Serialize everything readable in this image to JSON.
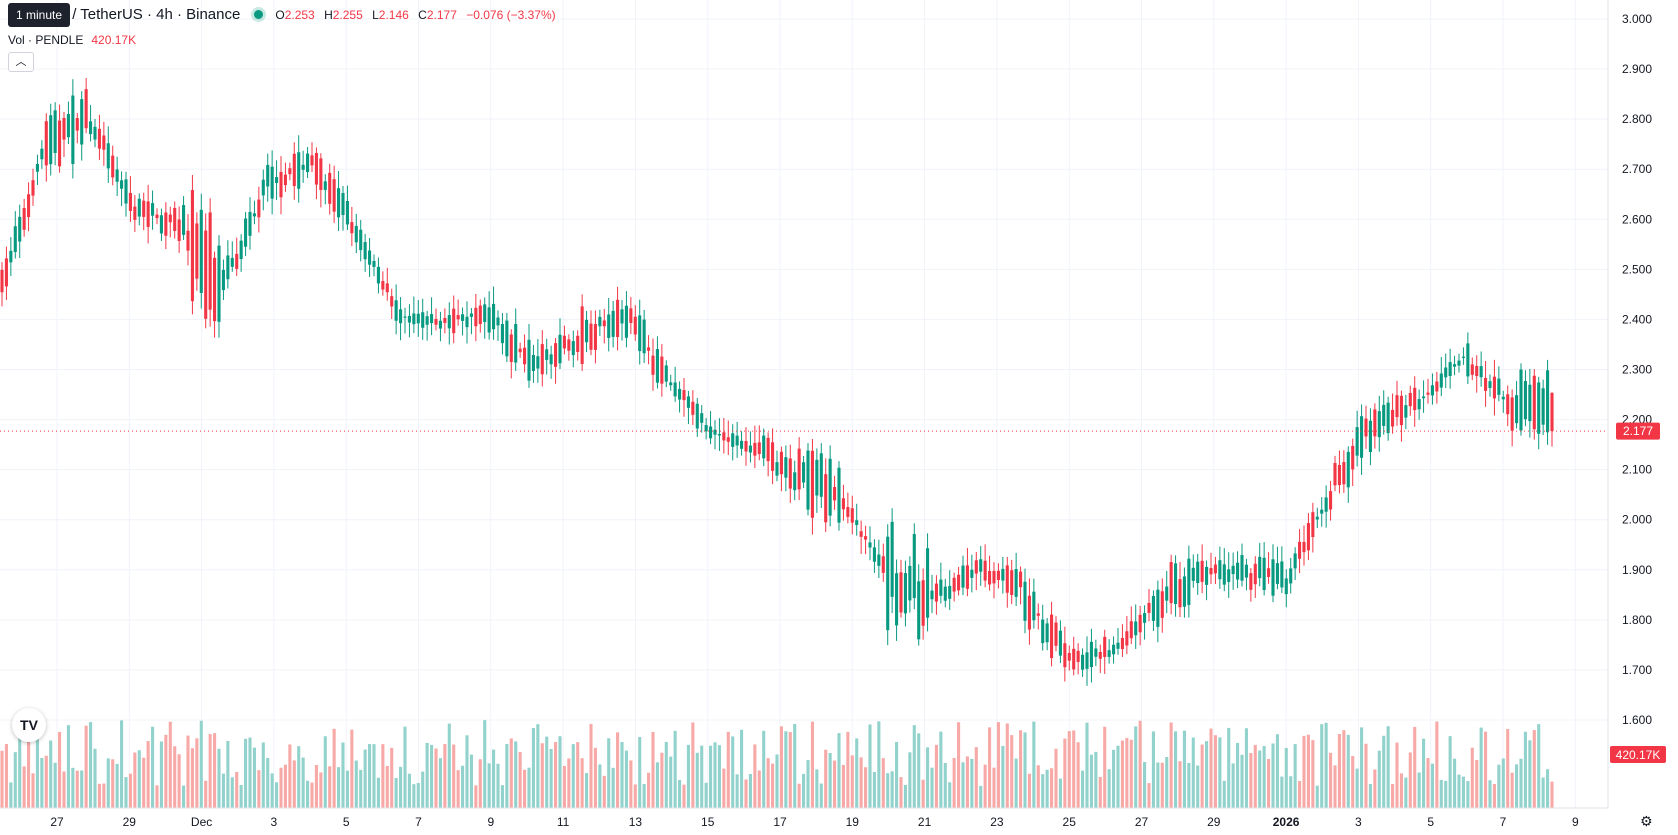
{
  "legend": {
    "symbol": "PENDLE / TetherUS · 4h · Binance",
    "o_label": "O",
    "o_value": "2.253",
    "h_label": "H",
    "h_value": "2.255",
    "l_label": "L",
    "l_value": "2.146",
    "c_label": "C",
    "c_value": "2.177",
    "change": "−0.076 (−3.37%)",
    "vol_label": "Vol · PENDLE",
    "vol_value": "420.17K"
  },
  "tooltip": "1 minute",
  "collapse_icon": "chevron-up-icon",
  "logo_text": "TV",
  "colors": {
    "up": "#089981",
    "down": "#f23645",
    "up_vol": "#92d2cc",
    "down_vol": "#f7a9a7",
    "grid": "#f0f3fa"
  },
  "chart_data": {
    "type": "candlestick",
    "symbol": "PENDLE / TetherUS",
    "interval": "4h",
    "exchange": "Binance",
    "ylim": [
      1.56,
      3.02
    ],
    "y_ticks": [
      "3.000",
      "2.900",
      "2.800",
      "2.700",
      "2.600",
      "2.500",
      "2.400",
      "2.300",
      "2.200",
      "2.100",
      "2.000",
      "1.900",
      "1.800",
      "1.700",
      "1.600"
    ],
    "x_ticks": [
      "27",
      "29",
      "Dec",
      "3",
      "5",
      "7",
      "9",
      "11",
      "13",
      "15",
      "17",
      "19",
      "21",
      "23",
      "25",
      "27",
      "29",
      "2026",
      "3",
      "5",
      "7",
      "9"
    ],
    "last_price": "2.177",
    "last_volume": "420.17K",
    "grid": true,
    "anchors": [
      [
        2.44,
        2.49
      ],
      [
        2.82,
        2.69
      ],
      [
        2.81,
        2.78
      ],
      [
        2.64,
        2.6
      ],
      [
        2.7,
        2.48
      ],
      [
        2.44,
        2.5
      ],
      [
        2.7,
        2.64
      ],
      [
        2.74,
        2.69
      ],
      [
        2.6,
        2.56
      ],
      [
        2.41,
        2.4
      ],
      [
        2.41,
        2.38
      ],
      [
        2.46,
        2.37
      ],
      [
        2.33,
        2.29
      ],
      [
        2.41,
        2.31
      ],
      [
        2.38,
        2.46
      ],
      [
        2.27,
        2.3
      ],
      [
        2.17,
        2.18
      ],
      [
        2.17,
        2.12
      ],
      [
        2.15,
        2.02
      ],
      [
        2.02,
        2.04
      ],
      [
        2.0,
        1.79
      ],
      [
        1.83,
        1.86
      ],
      [
        1.92,
        1.88
      ],
      [
        1.92,
        1.82
      ],
      [
        1.75,
        1.7
      ],
      [
        1.72,
        1.75
      ],
      [
        1.78,
        1.88
      ],
      [
        1.91,
        1.88
      ],
      [
        1.92,
        1.87
      ],
      [
        1.86,
        1.9
      ],
      [
        2.01,
        2.1
      ],
      [
        2.22,
        2.17
      ],
      [
        2.24,
        2.23
      ],
      [
        2.35,
        2.3
      ],
      [
        2.29,
        2.18
      ]
    ]
  }
}
